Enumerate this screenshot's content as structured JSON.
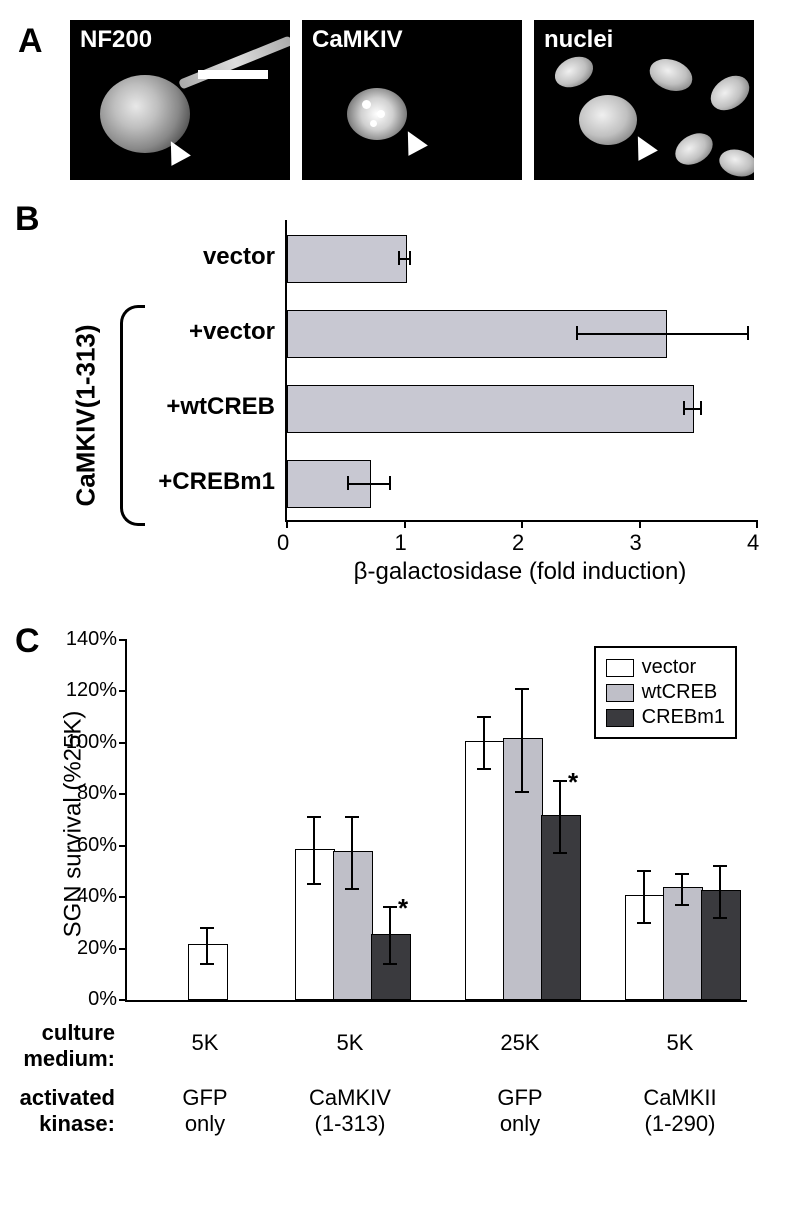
{
  "panelA": {
    "label": "A",
    "images": [
      {
        "label": "NF200"
      },
      {
        "label": "CaMKIV"
      },
      {
        "label": "nuclei"
      }
    ]
  },
  "panelB": {
    "label": "B",
    "xtitle": "β-galactosidase (fold induction)",
    "xlim": [
      0,
      4
    ],
    "xticks": [
      0,
      1,
      2,
      3,
      4
    ],
    "bar_color": "#c8c8d2",
    "group_label": "CaMKIV(1-313)",
    "bars": [
      {
        "label": "vector",
        "value": 1.0,
        "err_low": 0.05,
        "err_high": 0.05
      },
      {
        "label": "+vector",
        "value": 3.22,
        "err_low": 0.75,
        "err_high": 0.7
      },
      {
        "label": "+wtCREB",
        "value": 3.45,
        "err_low": 0.07,
        "err_high": 0.07
      },
      {
        "label": "+CREBm1",
        "value": 0.7,
        "err_low": 0.18,
        "err_high": 0.18
      }
    ]
  },
  "panelC": {
    "label": "C",
    "ytitle": "SGN survival (%25K)",
    "ylim": [
      0,
      140
    ],
    "yticks": [
      0,
      20,
      40,
      60,
      80,
      100,
      120,
      140
    ],
    "ytick_labels": [
      "0%",
      "20%",
      "40%",
      "60%",
      "80%",
      "100%",
      "120%",
      "140%"
    ],
    "legend": [
      {
        "label": "vector",
        "color": "#ffffff"
      },
      {
        "label": "wtCREB",
        "color": "#bfbfc8"
      },
      {
        "label": "CREBm1",
        "color": "#3a3a3e"
      }
    ],
    "row_labels": {
      "medium_title": "culture\nmedium:",
      "kinase_title": "activated\nkinase:"
    },
    "groups": [
      {
        "medium": "5K",
        "kinase": "GFP\nonly",
        "bars": [
          {
            "series": "vector",
            "value": 21,
            "err": 7
          }
        ]
      },
      {
        "medium": "5K",
        "kinase": "CaMKIV\n(1-313)",
        "bars": [
          {
            "series": "vector",
            "value": 58,
            "err": 13
          },
          {
            "series": "wtCREB",
            "value": 57,
            "err": 14
          },
          {
            "series": "CREBm1",
            "value": 25,
            "err": 11,
            "sig": true
          }
        ]
      },
      {
        "medium": "25K",
        "kinase": "GFP\nonly",
        "bars": [
          {
            "series": "vector",
            "value": 100,
            "err": 10
          },
          {
            "series": "wtCREB",
            "value": 101,
            "err": 20
          },
          {
            "series": "CREBm1",
            "value": 71,
            "err": 14,
            "sig": true
          }
        ]
      },
      {
        "medium": "5K",
        "kinase": "CaMKII\n(1-290)",
        "bars": [
          {
            "series": "vector",
            "value": 40,
            "err": 10
          },
          {
            "series": "wtCREB",
            "value": 43,
            "err": 6
          },
          {
            "series": "CREBm1",
            "value": 42,
            "err": 10
          }
        ]
      }
    ]
  }
}
